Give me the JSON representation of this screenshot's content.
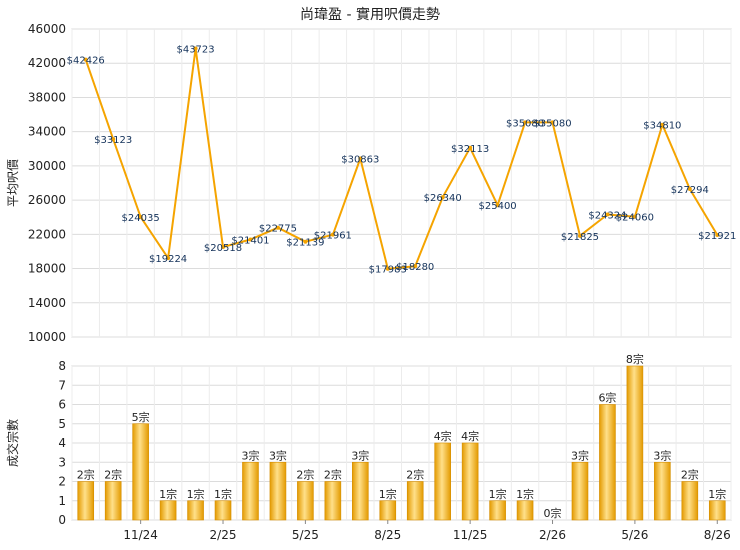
{
  "chart_data": [
    {
      "type": "line",
      "title": "尚瑋盈 - 實用呎價走勢",
      "ylabel": "平均呎價",
      "ylim": [
        10000,
        46000
      ],
      "yticks": [
        10000,
        14000,
        18000,
        22000,
        26000,
        30000,
        34000,
        38000,
        42000,
        46000
      ],
      "grid": true,
      "color": "#f5a400",
      "labels": [
        "$42426",
        "$33123",
        "$24035",
        "$19224",
        "$43723",
        "$20518",
        "$21401",
        "$22775",
        "$21139",
        "$21961",
        "$30863",
        "$17983",
        "$18280",
        "$26340",
        "$32113",
        "$25400",
        "$35080",
        "$35080",
        "$21825",
        "$24324",
        "$24060",
        "$34810",
        "$27294",
        "$21921"
      ],
      "values": [
        42426,
        33123,
        24035,
        19224,
        43723,
        20518,
        21401,
        22775,
        21139,
        21961,
        30863,
        17983,
        18280,
        26340,
        32113,
        25400,
        35080,
        35080,
        21825,
        24324,
        24060,
        34810,
        27294,
        21921
      ]
    },
    {
      "type": "bar",
      "ylabel": "成交宗數",
      "ylim": [
        0,
        8
      ],
      "yticks": [
        0,
        1,
        2,
        3,
        4,
        5,
        6,
        7,
        8
      ],
      "grid": true,
      "color": "#f5a400",
      "x_tick_labels": [
        "11/24",
        "2/25",
        "5/25",
        "8/25",
        "11/25",
        "2/26",
        "5/26",
        "8/26"
      ],
      "labels": [
        "2宗",
        "2宗",
        "5宗",
        "1宗",
        "1宗",
        "1宗",
        "3宗",
        "3宗",
        "2宗",
        "2宗",
        "3宗",
        "1宗",
        "2宗",
        "4宗",
        "4宗",
        "1宗",
        "1宗",
        "0宗",
        "3宗",
        "6宗",
        "8宗",
        "3宗",
        "2宗",
        "1宗"
      ],
      "values": [
        2,
        2,
        5,
        1,
        1,
        1,
        3,
        3,
        2,
        2,
        3,
        1,
        2,
        4,
        4,
        1,
        1,
        0,
        3,
        6,
        8,
        3,
        2,
        1
      ]
    }
  ]
}
